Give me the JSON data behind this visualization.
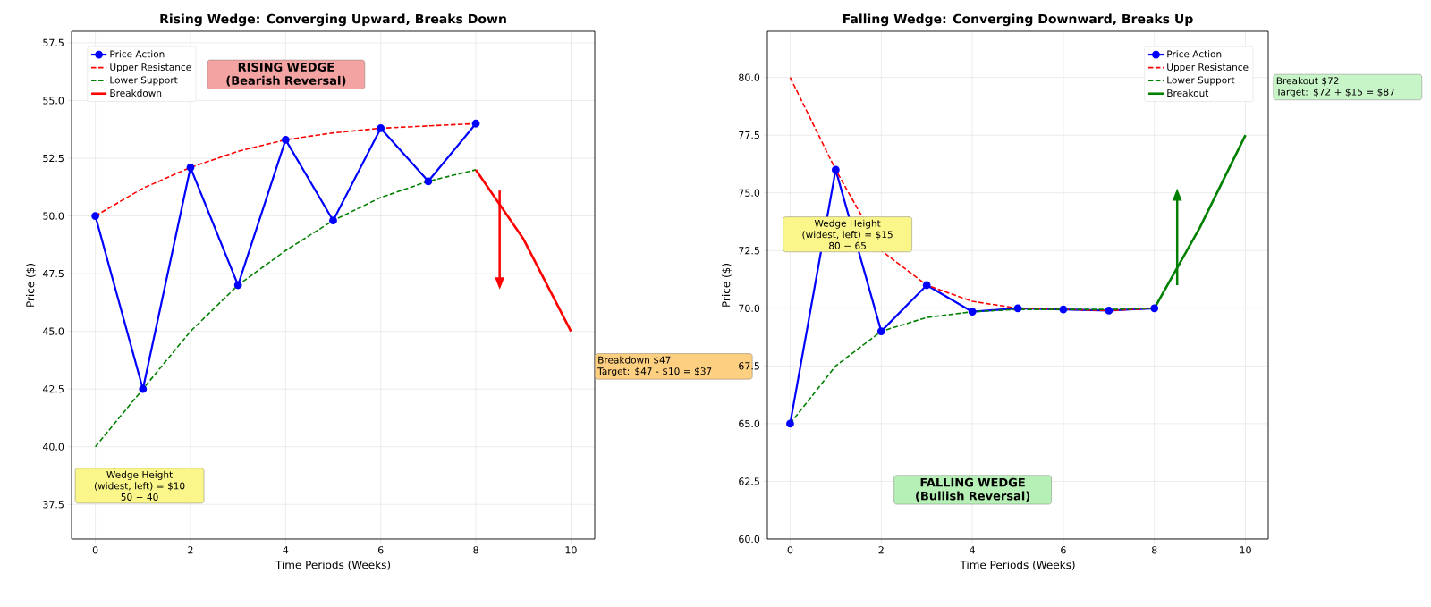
{
  "chart_data": [
    {
      "type": "line",
      "title": "Rising Wedge: Converging Upward, Breaks Down",
      "xlabel": "Time Periods (Weeks)",
      "ylabel": "Price ($)",
      "x": [
        0,
        1,
        2,
        3,
        4,
        5,
        6,
        7,
        8
      ],
      "series": [
        {
          "name": "Price Action",
          "color": "#0000ff",
          "marker": "circle",
          "line_style": "solid",
          "values": [
            50,
            42.5,
            52.1,
            47,
            53.3,
            49.8,
            53.8,
            51.5,
            54
          ]
        },
        {
          "name": "Upper Resistance",
          "color": "#ff0000",
          "line_style": "dashed",
          "values": [
            50,
            51.2,
            52.1,
            52.8,
            53.3,
            53.6,
            53.8,
            53.9,
            54
          ]
        },
        {
          "name": "Lower Support",
          "color": "#008000",
          "line_style": "dashed",
          "values": [
            40,
            42.5,
            45,
            47,
            48.5,
            49.8,
            50.8,
            51.5,
            52
          ]
        },
        {
          "name": "Breakdown",
          "color": "#ff0000",
          "line_style": "solid",
          "x": [
            8,
            9,
            10
          ],
          "values": [
            52,
            49,
            45
          ]
        }
      ],
      "xlim": [
        -0.5,
        10.5
      ],
      "ylim": [
        36,
        58
      ],
      "xticks": [
        0,
        2,
        4,
        6,
        8,
        10
      ],
      "yticks": [
        37.5,
        {
          "value": 40,
          "label": "40.0"
        },
        42.5,
        {
          "value": 45,
          "label": "45.0"
        },
        47.5,
        {
          "value": 50,
          "label": "50.0"
        },
        52.5,
        {
          "value": 55,
          "label": "55.0"
        },
        57.5
      ],
      "grid": true,
      "legend": "top left",
      "annotations": [
        "RISING WEDGE\n(Bearish Reversal)",
        "Wedge Height\n(widest, left) = $10\n50 − 40",
        "Breakdown $47\nTarget: $47 - $10 = $37"
      ]
    },
    {
      "type": "line",
      "title": "Falling Wedge: Converging Downward, Breaks Up",
      "xlabel": "Time Periods (Weeks)",
      "ylabel": "Price ($)",
      "x": [
        0,
        1,
        2,
        3,
        4,
        5,
        6,
        7,
        8
      ],
      "series": [
        {
          "name": "Price Action",
          "color": "#0000ff",
          "marker": "circle",
          "line_style": "solid",
          "values": [
            65,
            76,
            69,
            71,
            69.85,
            70,
            69.95,
            69.9,
            70
          ]
        },
        {
          "name": "Upper Resistance",
          "color": "#ff0000",
          "line_style": "dashed",
          "values": [
            80,
            76,
            72.5,
            71,
            70.3,
            70,
            69.95,
            69.9,
            70
          ]
        },
        {
          "name": "Lower Support",
          "color": "#008000",
          "line_style": "dashed",
          "values": [
            65,
            67.5,
            69,
            69.6,
            69.85,
            69.95,
            69.95,
            69.95,
            70
          ]
        },
        {
          "name": "Breakout",
          "color": "#008000",
          "line_style": "solid",
          "x": [
            8,
            9,
            10
          ],
          "values": [
            70,
            73.5,
            77.5
          ]
        }
      ],
      "xlim": [
        -0.5,
        10.5
      ],
      "ylim": [
        60,
        82
      ],
      "xticks": [
        0,
        2,
        4,
        6,
        8,
        10
      ],
      "yticks": [
        {
          "value": 60,
          "label": "60.0"
        },
        62.5,
        {
          "value": 65,
          "label": "65.0"
        },
        67.5,
        {
          "value": 70,
          "label": "70.0"
        },
        72.5,
        {
          "value": 75,
          "label": "75.0"
        },
        77.5,
        {
          "value": 80,
          "label": "80.0"
        }
      ],
      "grid": true,
      "legend": "top right",
      "annotations": [
        "FALLING WEDGE\n(Bullish Reversal)",
        "Wedge Height\n(widest, left) = $15\n80 − 65",
        "Breakout $72\nTarget: $72 + $15 = $87"
      ]
    }
  ]
}
